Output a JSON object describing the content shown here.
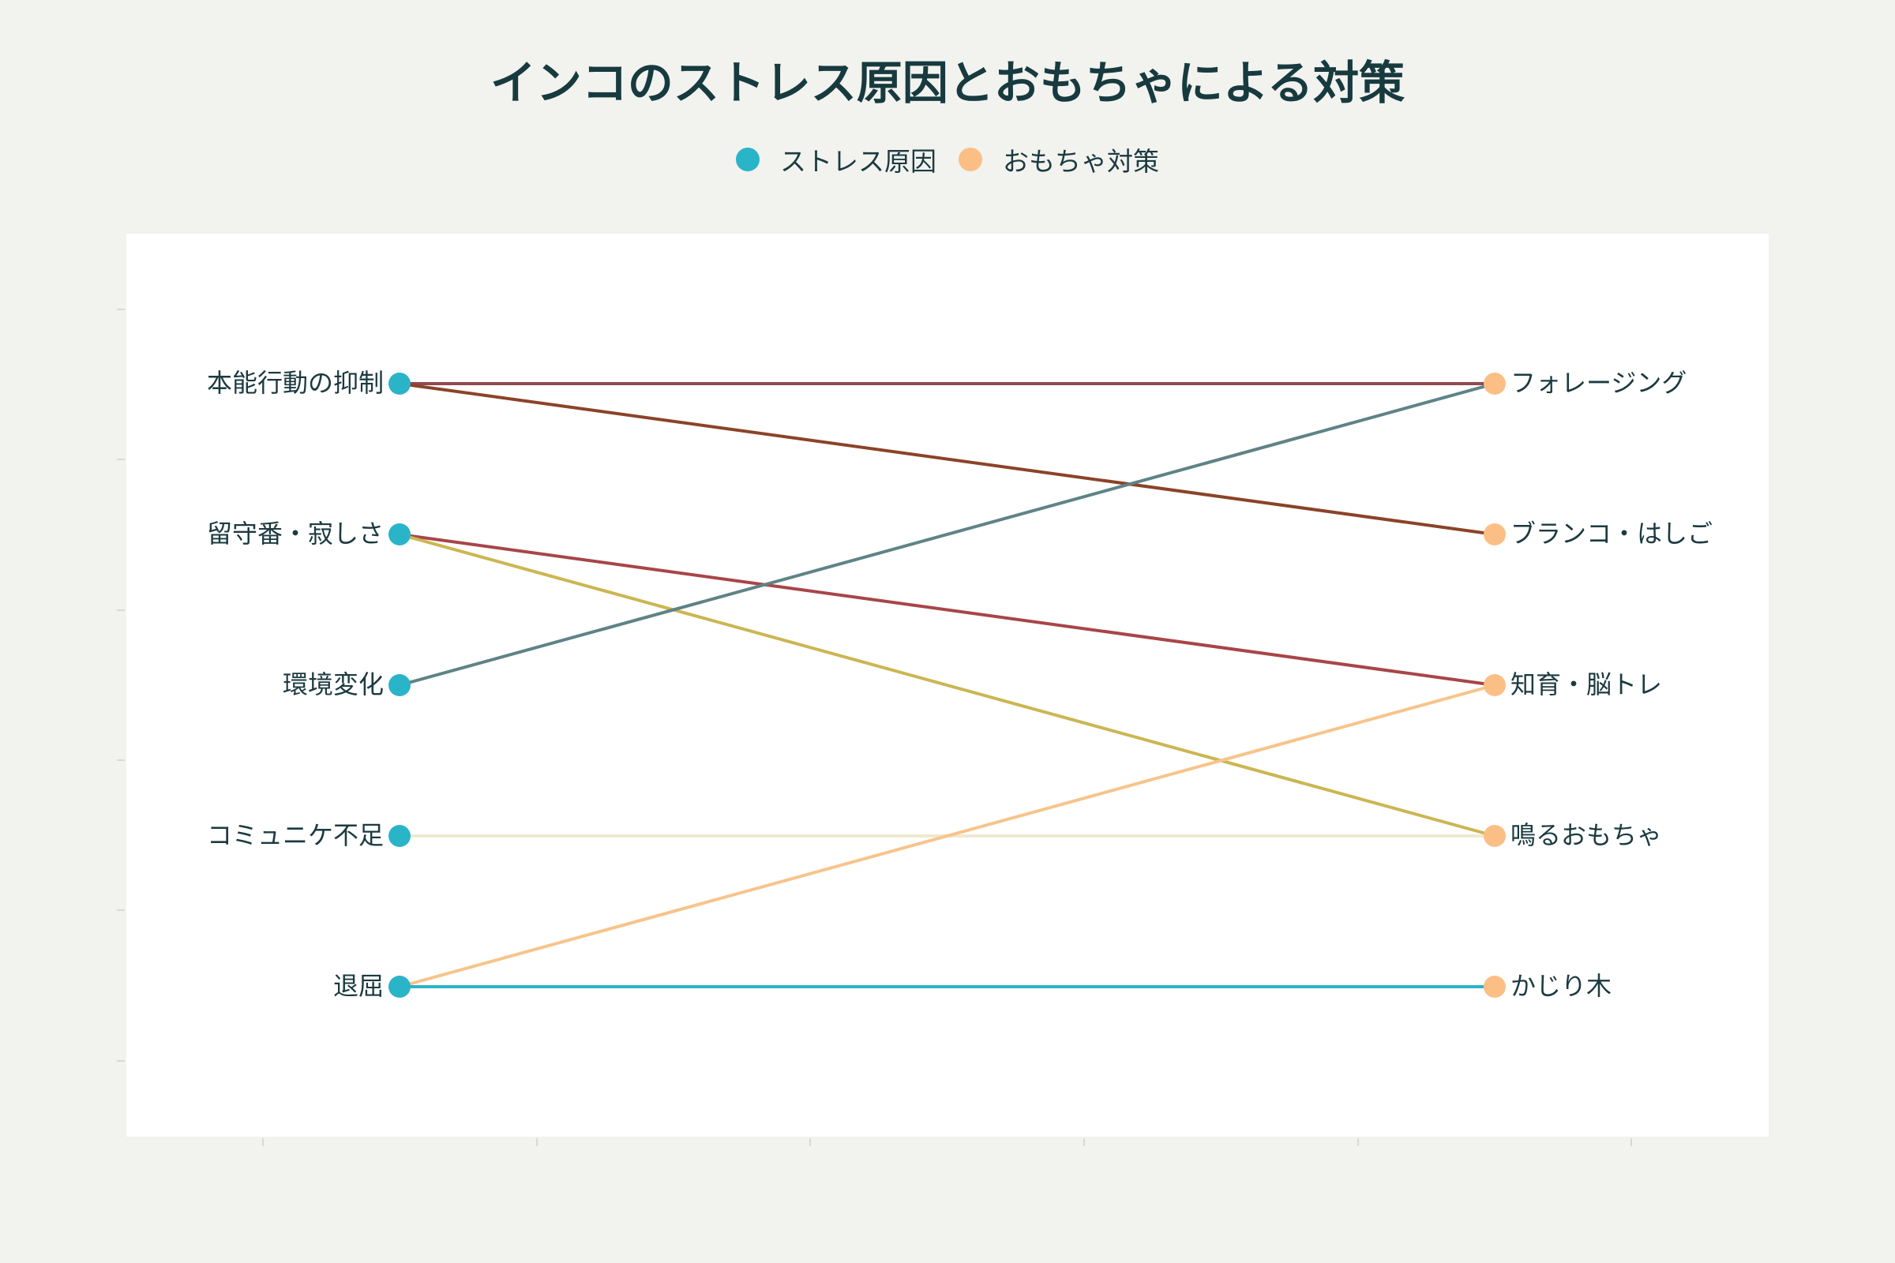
{
  "title": "インコのストレス原因とおもちゃによる対策",
  "legend": {
    "causes_label": "ストレス原因",
    "toys_label": "おもちゃ対策"
  },
  "colors": {
    "background": "#f2f2ee",
    "plot_background": "#ffffff",
    "cause_node": "#2ab4c8",
    "toy_node": "#fbbf86",
    "text": "#1b3a40"
  },
  "chart_data": {
    "type": "parallel-links",
    "title": "インコのストレス原因とおもちゃによる対策",
    "left_axis": {
      "name": "ストレス原因",
      "categories": [
        "本能行動の抑制",
        "留守番・寂しさ",
        "環境変化",
        "コミュニケ不足",
        "退屈"
      ]
    },
    "right_axis": {
      "name": "おもちゃ対策",
      "categories": [
        "フォレージング",
        "ブランコ・はしご",
        "知育・脳トレ",
        "鳴るおもちゃ",
        "かじり木"
      ]
    },
    "links": [
      {
        "from": "本能行動の抑制",
        "to": "フォレージング",
        "color": "#8f4a50"
      },
      {
        "from": "本能行動の抑制",
        "to": "ブランコ・はしご",
        "color": "#8b4327"
      },
      {
        "from": "留守番・寂しさ",
        "to": "知育・脳トレ",
        "color": "#a84548"
      },
      {
        "from": "留守番・寂しさ",
        "to": "鳴るおもちゃ",
        "color": "#cbb653"
      },
      {
        "from": "環境変化",
        "to": "フォレージング",
        "color": "#5f8386"
      },
      {
        "from": "コミュニケ不足",
        "to": "鳴るおもちゃ",
        "color": "#efe9cf"
      },
      {
        "from": "退屈",
        "to": "知育・脳トレ",
        "color": "#f7c48b"
      },
      {
        "from": "退屈",
        "to": "かじり木",
        "color": "#2ab4c8"
      }
    ],
    "grid": false,
    "legend_position": "top-center"
  }
}
